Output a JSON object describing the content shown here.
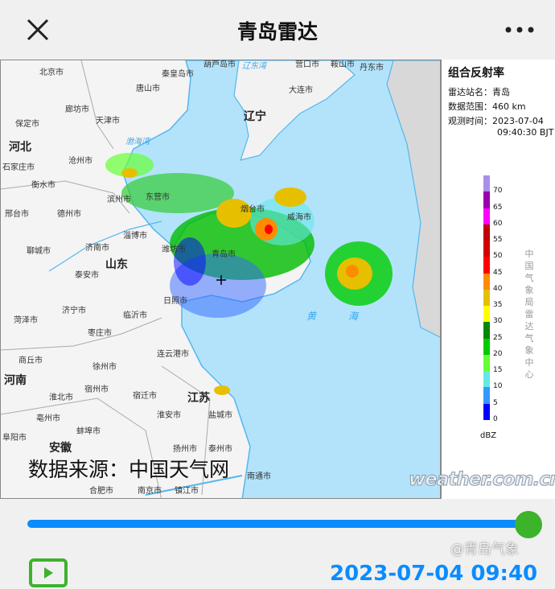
{
  "header": {
    "title": "青岛雷达",
    "close_icon": "close-icon",
    "more_icon": "more-dots-icon"
  },
  "map": {
    "cities": [
      "北京市",
      "天津市",
      "唐山市",
      "秦皇岛市",
      "葫芦岛市",
      "廊坊市",
      "保定市",
      "沧州市",
      "衡水市",
      "石家庄市",
      "邢台市",
      "德州市",
      "滨州市",
      "东营市",
      "潍坊市",
      "淄博市",
      "济南市",
      "聊城市",
      "泰安市",
      "济宁市",
      "菏泽市",
      "临沂市",
      "日照市",
      "枣庄市",
      "徐州市",
      "连云港市",
      "商丘市",
      "宿州市",
      "淮北市",
      "宿迁市",
      "淮安市",
      "盐城市",
      "亳州市",
      "蚌埠市",
      "阜阳市",
      "扬州市",
      "泰州市",
      "南京市",
      "镇江市",
      "南通市",
      "合肥市",
      "大连市",
      "营口市",
      "鞍山市",
      "丹东市",
      "威海市",
      "烟台市",
      "青岛市"
    ],
    "provinces": [
      "河北",
      "山东",
      "河南",
      "江苏",
      "辽宁",
      "安徽"
    ],
    "seas": [
      "渤海湾",
      "辽东湾",
      "黄海"
    ],
    "source_text": "数据来源：中国天气网",
    "watermark": "weather.com.cn"
  },
  "legend": {
    "title": "组合反射率",
    "station_label": "雷达站名：",
    "station": "青岛",
    "range_label": "数据范围：",
    "range": "460 km",
    "time_label": "观测时间：",
    "time_date": "2023-07-04",
    "time_clock": "09:40:30 BJT",
    "ticks": [
      "70",
      "65",
      "60",
      "55",
      "50",
      "45",
      "40",
      "35",
      "30",
      "25",
      "20",
      "15",
      "10",
      "5",
      "0"
    ],
    "colors": [
      "#a98fe8",
      "#9a00b0",
      "#ff00ff",
      "#c00000",
      "#d40000",
      "#ff0000",
      "#ff8c00",
      "#e6c000",
      "#ffff00",
      "#008800",
      "#00cc00",
      "#66ff33",
      "#66e8e8",
      "#3399ff",
      "#0000ff"
    ],
    "unit": "dBZ",
    "vertical_text": "中国气象局雷达气象中心"
  },
  "player": {
    "progress": 1.0,
    "timestamp": "2023-07-04 09:40",
    "play_icon": "play-icon",
    "accent": "#0a8cff",
    "thumb_color": "#3cb32b"
  },
  "overlay": {
    "weibo": "@青岛气象"
  }
}
